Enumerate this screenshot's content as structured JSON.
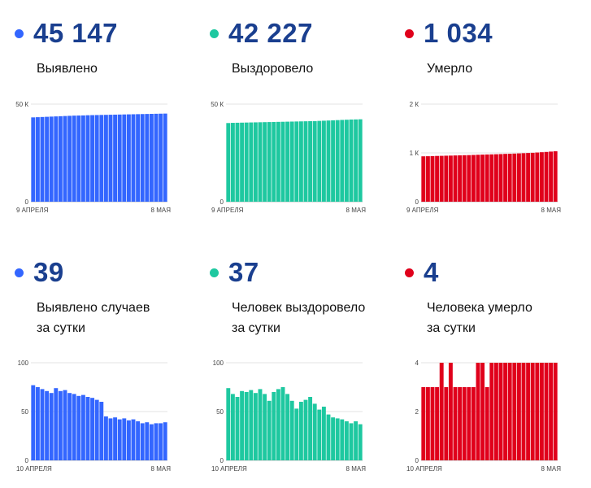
{
  "panels": [
    {
      "id": "detected-total",
      "number": "45 147",
      "label_lines": [
        "Выявлено"
      ],
      "color": "#3366ff",
      "chart_data": {
        "type": "bar",
        "x_start_label": "9 АПРЕЛЯ",
        "x_end_label": "8 МАЯ",
        "ylim": [
          0,
          50000
        ],
        "yticks": [
          0,
          50000
        ],
        "ytick_labels": [
          "0",
          "50 К"
        ],
        "values": [
          43200,
          43300,
          43400,
          43500,
          43600,
          43700,
          43800,
          43900,
          44000,
          44100,
          44150,
          44200,
          44300,
          44350,
          44400,
          44450,
          44500,
          44550,
          44600,
          44650,
          44700,
          44750,
          44800,
          44850,
          44900,
          44950,
          45000,
          45050,
          45100,
          45147
        ]
      }
    },
    {
      "id": "recovered-total",
      "number": "42 227",
      "label_lines": [
        "Выздоровело"
      ],
      "color": "#1ec8a0",
      "chart_data": {
        "type": "bar",
        "x_start_label": "9 АПРЕЛЯ",
        "x_end_label": "8 МАЯ",
        "ylim": [
          0,
          50000
        ],
        "yticks": [
          0,
          50000
        ],
        "ytick_labels": [
          "0",
          "50 К"
        ],
        "values": [
          40300,
          40400,
          40450,
          40500,
          40550,
          40600,
          40650,
          40700,
          40750,
          40800,
          40850,
          40900,
          40950,
          41000,
          41050,
          41100,
          41150,
          41200,
          41250,
          41300,
          41400,
          41500,
          41600,
          41700,
          41800,
          41900,
          42000,
          42100,
          42150,
          42227
        ]
      }
    },
    {
      "id": "deaths-total",
      "number": "1 034",
      "label_lines": [
        "Умерло"
      ],
      "color": "#e0001b",
      "chart_data": {
        "type": "bar",
        "x_start_label": "9 АПРЕЛЯ",
        "x_end_label": "8 МАЯ",
        "ylim": [
          0,
          2000
        ],
        "yticks": [
          0,
          1000,
          2000
        ],
        "ytick_labels": [
          "0",
          "1 К",
          "2 К"
        ],
        "values": [
          930,
          932,
          935,
          938,
          940,
          943,
          945,
          948,
          950,
          953,
          955,
          958,
          962,
          965,
          968,
          970,
          973,
          976,
          980,
          983,
          986,
          990,
          994,
          998,
          1002,
          1008,
          1014,
          1020,
          1027,
          1034
        ]
      }
    },
    {
      "id": "detected-daily",
      "number": "39",
      "label_lines": [
        "Выявлено случаев",
        "за сутки"
      ],
      "color": "#3366ff",
      "chart_data": {
        "type": "bar",
        "x_start_label": "10 АПРЕЛЯ",
        "x_end_label": "8 МАЯ",
        "ylim": [
          0,
          100
        ],
        "yticks": [
          0,
          50,
          100
        ],
        "ytick_labels": [
          "0",
          "50",
          "100"
        ],
        "values": [
          77,
          75,
          73,
          71,
          69,
          74,
          71,
          72,
          69,
          68,
          66,
          67,
          65,
          64,
          62,
          60,
          45,
          43,
          44,
          42,
          43,
          41,
          42,
          40,
          38,
          39,
          37,
          38,
          38,
          39
        ]
      }
    },
    {
      "id": "recovered-daily",
      "number": "37",
      "label_lines": [
        "Человек выздоровело",
        "за сутки"
      ],
      "color": "#1ec8a0",
      "chart_data": {
        "type": "bar",
        "x_start_label": "10 АПРЕЛЯ",
        "x_end_label": "8 МАЯ",
        "ylim": [
          0,
          100
        ],
        "yticks": [
          0,
          50,
          100
        ],
        "ytick_labels": [
          "0",
          "50",
          "100"
        ],
        "values": [
          74,
          68,
          65,
          71,
          70,
          72,
          69,
          73,
          68,
          61,
          70,
          73,
          75,
          68,
          61,
          53,
          60,
          62,
          65,
          58,
          52,
          55,
          47,
          44,
          43,
          42,
          40,
          38,
          40,
          37
        ]
      }
    },
    {
      "id": "deaths-daily",
      "number": "4",
      "label_lines": [
        "Человека умерло",
        "за сутки"
      ],
      "color": "#e0001b",
      "chart_data": {
        "type": "bar",
        "x_start_label": "10 АПРЕЛЯ",
        "x_end_label": "8 МАЯ",
        "ylim": [
          0,
          4
        ],
        "yticks": [
          0,
          2,
          4
        ],
        "ytick_labels": [
          "0",
          "2",
          "4"
        ],
        "values": [
          3,
          3,
          3,
          3,
          4,
          3,
          4,
          3,
          3,
          3,
          3,
          3,
          4,
          4,
          3,
          4,
          4,
          4,
          4,
          4,
          4,
          4,
          4,
          4,
          4,
          4,
          4,
          4,
          4,
          4
        ]
      }
    }
  ]
}
